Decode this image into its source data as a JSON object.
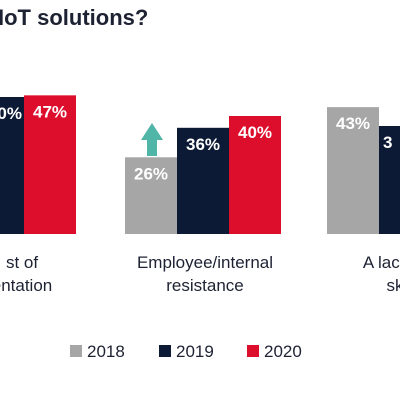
{
  "chart_data": {
    "type": "bar",
    "title": "IoT solutions?",
    "categories": [
      [
        "st of",
        "entation"
      ],
      [
        "Employee/internal",
        "resistance"
      ],
      [
        "A lack of",
        "sk"
      ]
    ],
    "series": [
      {
        "name": "2018",
        "color": "#a6a6a6",
        "values": [
          null,
          26,
          43
        ],
        "labels": [
          "",
          "26%",
          "43%"
        ]
      },
      {
        "name": "2019",
        "color": "#0d1a35",
        "values": [
          null,
          36,
          null
        ],
        "labels": [
          "0%",
          "36%",
          "3"
        ]
      },
      {
        "name": "2020",
        "color": "#dd0d2c",
        "values": [
          47,
          40,
          null
        ],
        "labels": [
          "47%",
          "40%",
          ""
        ]
      }
    ],
    "annotation": {
      "type": "up-arrow",
      "color": "#4fb5a6",
      "category_index": 1
    },
    "legend": {
      "position": "bottom",
      "entries": [
        "2018",
        "2019",
        "2020"
      ]
    },
    "ylim": [
      0,
      60
    ],
    "grid": false
  }
}
